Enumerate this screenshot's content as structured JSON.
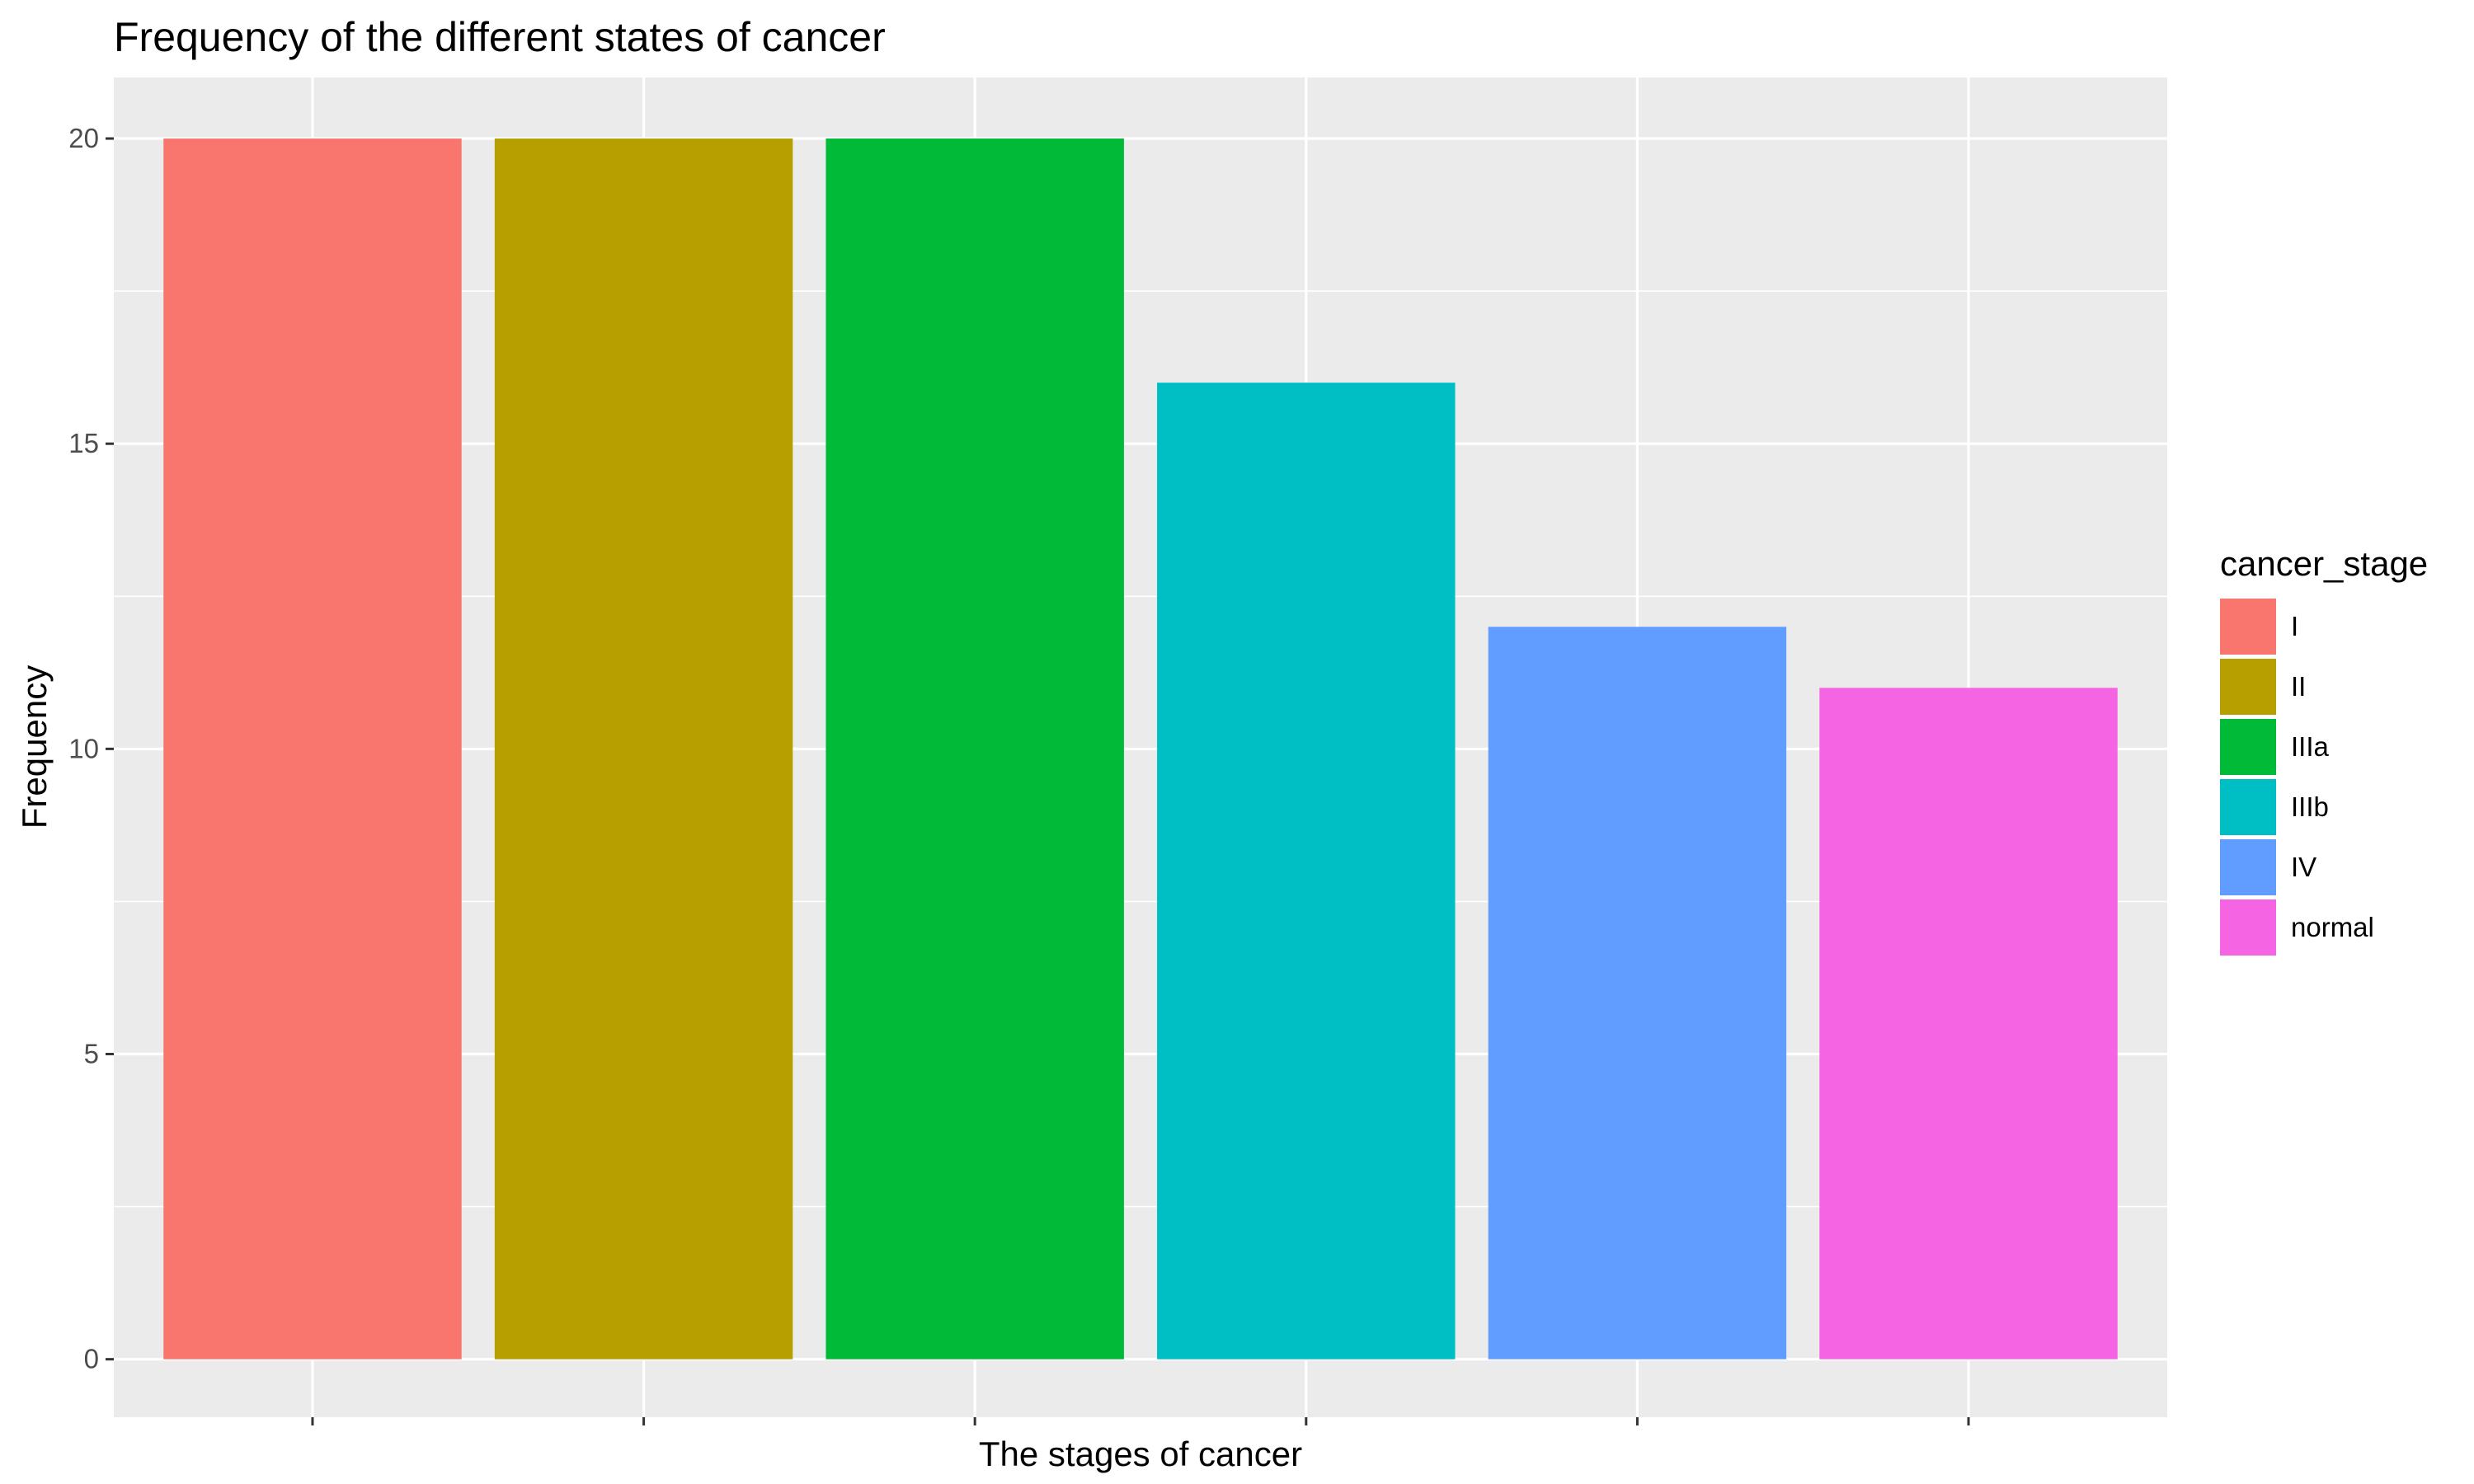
{
  "chart_data": {
    "type": "bar",
    "title": "Frequency of the different states of cancer",
    "xlabel": "The stages of cancer",
    "ylabel": "Frequency",
    "categories": [
      "I",
      "II",
      "IIIa",
      "IIIb",
      "IV",
      "normal"
    ],
    "values": [
      20,
      20,
      20,
      16,
      12,
      11
    ],
    "colors": [
      "#F8766D",
      "#B79F00",
      "#00BA38",
      "#00BFC4",
      "#619CFF",
      "#F564E3"
    ],
    "ylim": [
      -0.95,
      21
    ],
    "yticks": [
      0,
      5,
      10,
      15,
      20
    ],
    "show_x_tick_labels": false,
    "grid": true,
    "panel_background": "#EBEBEB",
    "grid_color": "#FFFFFF",
    "legend": {
      "title": "cancer_stage",
      "position": "right",
      "entries": [
        "I",
        "II",
        "IIIa",
        "IIIb",
        "IV",
        "normal"
      ]
    }
  }
}
